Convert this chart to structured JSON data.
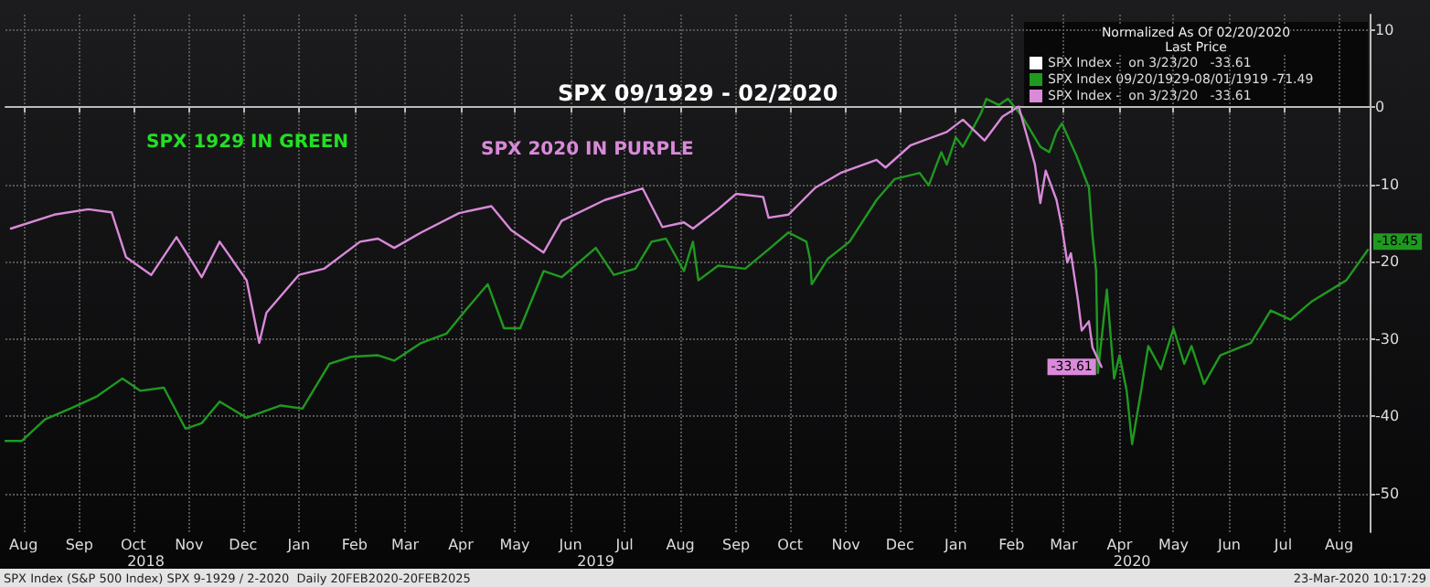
{
  "chart_data": {
    "type": "line",
    "title": "SPX 09/1929 - 02/2020",
    "legend_title": "Normalized As Of 02/20/2020\nLast Price",
    "annotations": [
      "SPX 1929 IN GREEN",
      "SPX 2020 IN PURPLE",
      "SPX Index (S&P 500 Index) SPX 9-1929 / 2-2020  Daily 20FEB2020-20FEB2025",
      "23-Mar-2020 10:17:29"
    ],
    "series": [
      {
        "name": "SPX Index -  on 3/23/20   -33.61",
        "color": "#ffffff"
      },
      {
        "name": "SPX Index 09/20/1929-08/01/1919 -71.49",
        "color": "#1f9a1f",
        "x": [
          "2018-08-05",
          "2018-08-14",
          "2018-08-27",
          "2018-09-10",
          "2018-09-25",
          "2018-10-09",
          "2018-10-19",
          "2018-11-01",
          "2018-11-13",
          "2018-11-22",
          "2018-12-02",
          "2018-12-17",
          "2019-01-05",
          "2019-01-17",
          "2019-02-01",
          "2019-02-13",
          "2019-02-28",
          "2019-03-09",
          "2019-03-24",
          "2019-04-07",
          "2019-04-19",
          "2019-04-30",
          "2019-05-09",
          "2019-05-18",
          "2019-05-31",
          "2019-06-10",
          "2019-06-29",
          "2019-07-09",
          "2019-07-21",
          "2019-07-30",
          "2019-08-07",
          "2019-08-17",
          "2019-08-22",
          "2019-08-25",
          "2019-09-05",
          "2019-09-20",
          "2019-10-04",
          "2019-10-14",
          "2019-10-24",
          "2019-10-26",
          "2019-10-27",
          "2019-11-05",
          "2019-11-17",
          "2019-12-02",
          "2019-12-12",
          "2019-12-26",
          "2019-12-31",
          "2020-01-07",
          "2020-01-10",
          "2020-01-15",
          "2020-01-19",
          "2020-01-29",
          "2020-02-01",
          "2020-02-08",
          "2020-02-13",
          "2020-02-21",
          "2020-03-02",
          "2020-03-07",
          "2020-03-11",
          "2020-03-14",
          "2020-03-22",
          "2020-03-29",
          "2020-03-31",
          "2020-04-02",
          "2020-04-03",
          "2020-04-08",
          "2020-04-12",
          "2020-04-15",
          "2020-04-19",
          "2020-04-22",
          "2020-04-27",
          "2020-05-01",
          "2020-05-08",
          "2020-05-15",
          "2020-05-21",
          "2020-05-25",
          "2020-06-01",
          "2020-06-10",
          "2020-06-27",
          "2020-07-08",
          "2020-07-19",
          "2020-07-31",
          "2020-08-19",
          "2020-08-31"
        ],
        "values": [
          -43.2,
          -43.2,
          -40.4,
          -39.0,
          -37.4,
          -35.1,
          -36.7,
          -36.3,
          -41.6,
          -40.9,
          -38.1,
          -40.2,
          -38.6,
          -39.0,
          -33.2,
          -32.3,
          -32.1,
          -32.8,
          -30.5,
          -29.3,
          -25.9,
          -22.9,
          -28.6,
          -28.6,
          -21.2,
          -22.0,
          -18.2,
          -21.7,
          -20.9,
          -17.4,
          -17.0,
          -21.2,
          -17.4,
          -22.4,
          -20.5,
          -20.9,
          -18.2,
          -16.2,
          -17.4,
          -19.6,
          -22.9,
          -19.6,
          -17.4,
          -12.0,
          -9.3,
          -8.5,
          -10.1,
          -5.8,
          -7.4,
          -3.9,
          -5.1,
          -0.8,
          1.1,
          0.3,
          1.1,
          -1.2,
          -5.1,
          -5.8,
          -3.2,
          -2.1,
          -6.2,
          -10.4,
          -16.6,
          -21.2,
          -34.4,
          -23.6,
          -35.1,
          -32.1,
          -36.7,
          -43.6,
          -36.7,
          -30.9,
          -33.9,
          -28.6,
          -33.2,
          -30.9,
          -35.8,
          -32.1,
          -30.5,
          -26.3,
          -27.5,
          -25.1,
          -22.4,
          -18.45
        ],
        "value_labels": [
          null,
          null,
          null,
          null,
          null,
          null,
          null,
          null,
          null,
          null,
          null,
          null,
          null,
          null,
          null,
          null,
          null,
          null,
          null,
          null,
          null,
          null,
          null,
          null,
          null,
          null,
          null,
          null,
          null,
          null,
          null,
          null,
          null,
          null,
          null,
          null,
          null,
          null,
          null,
          null,
          null,
          null,
          null,
          null,
          null,
          null,
          null,
          null,
          null,
          null,
          null,
          null,
          null,
          null,
          null,
          null,
          null,
          null,
          null,
          null,
          null,
          null,
          null,
          null,
          null,
          null,
          null,
          null,
          null,
          null,
          null,
          null,
          null,
          null,
          null,
          null,
          null,
          null,
          null,
          null,
          null,
          null,
          null,
          "-18.45"
        ]
      },
      {
        "name": "SPX Index -  on 3/23/20   -33.61",
        "color": "#d98ad9",
        "x": [
          "2018-08-08",
          "2018-09-01",
          "2018-09-20",
          "2018-10-03",
          "2018-10-11",
          "2018-10-25",
          "2018-11-08",
          "2018-11-22",
          "2018-12-02",
          "2018-12-17",
          "2018-12-24",
          "2018-12-28",
          "2019-01-15",
          "2019-01-29",
          "2019-02-18",
          "2019-02-28",
          "2019-03-09",
          "2019-03-24",
          "2019-04-14",
          "2019-05-02",
          "2019-05-13",
          "2019-05-31",
          "2019-06-10",
          "2019-07-04",
          "2019-07-25",
          "2019-08-05",
          "2019-08-17",
          "2019-08-22",
          "2019-09-05",
          "2019-09-15",
          "2019-09-30",
          "2019-10-03",
          "2019-10-14",
          "2019-10-29",
          "2019-11-12",
          "2019-12-02",
          "2019-12-07",
          "2019-12-21",
          "2020-01-10",
          "2020-01-19",
          "2020-01-31",
          "2020-02-10",
          "2020-02-19",
          "2020-02-28",
          "2020-03-02",
          "2020-03-05",
          "2020-03-11",
          "2020-03-14",
          "2020-03-17",
          "2020-03-19",
          "2020-03-23",
          "2020-03-25",
          "2020-03-29",
          "2020-03-31",
          "2020-04-05"
        ],
        "values": [
          -15.7,
          -13.9,
          -13.2,
          -13.6,
          -19.4,
          -21.7,
          -16.8,
          -22.0,
          -17.4,
          -22.4,
          -30.5,
          -26.6,
          -21.7,
          -20.9,
          -17.4,
          -17.0,
          -18.2,
          -16.2,
          -13.7,
          -12.8,
          -15.9,
          -18.8,
          -14.7,
          -12.0,
          -10.5,
          -15.5,
          -14.9,
          -15.7,
          -13.2,
          -11.2,
          -11.6,
          -14.3,
          -13.9,
          -10.4,
          -8.5,
          -6.8,
          -7.8,
          -4.9,
          -3.2,
          -1.6,
          -4.3,
          -1.2,
          0.1,
          -7.4,
          -12.4,
          -8.2,
          -12.0,
          -15.5,
          -20.1,
          -18.9,
          -25.1,
          -28.9,
          -27.7,
          -31.1,
          -33.61
        ],
        "value_labels": [
          null,
          null,
          null,
          null,
          null,
          null,
          null,
          null,
          null,
          null,
          null,
          null,
          null,
          null,
          null,
          null,
          null,
          null,
          null,
          null,
          null,
          null,
          null,
          null,
          null,
          null,
          null,
          null,
          null,
          null,
          null,
          null,
          null,
          null,
          null,
          null,
          null,
          null,
          null,
          null,
          null,
          null,
          null,
          null,
          null,
          null,
          null,
          null,
          null,
          null,
          null,
          null,
          null,
          null,
          "-33.61"
        ]
      }
    ],
    "xlim": [
      "2018-08-05",
      "2020-09-01"
    ],
    "xticks": [
      {
        "value": "2018-08-15",
        "label": "Aug"
      },
      {
        "value": "2018-09-15",
        "label": "Sep"
      },
      {
        "value": "2018-10-15",
        "label": "Oct"
      },
      {
        "value": "2018-11-15",
        "label": "Nov"
      },
      {
        "value": "2018-12-15",
        "label": "Dec"
      },
      {
        "value": "2019-01-15",
        "label": "Jan"
      },
      {
        "value": "2019-02-15",
        "label": "Feb"
      },
      {
        "value": "2019-03-15",
        "label": "Mar"
      },
      {
        "value": "2019-04-15",
        "label": "Apr"
      },
      {
        "value": "2019-05-15",
        "label": "May"
      },
      {
        "value": "2019-06-15",
        "label": "Jun"
      },
      {
        "value": "2019-07-15",
        "label": "Jul"
      },
      {
        "value": "2019-08-15",
        "label": "Aug"
      },
      {
        "value": "2019-09-15",
        "label": "Sep"
      },
      {
        "value": "2019-10-15",
        "label": "Oct"
      },
      {
        "value": "2019-11-15",
        "label": "Nov"
      },
      {
        "value": "2019-12-15",
        "label": "Dec"
      },
      {
        "value": "2020-01-15",
        "label": "Jan"
      },
      {
        "value": "2020-02-15",
        "label": "Feb"
      },
      {
        "value": "2020-03-15",
        "label": "Mar"
      },
      {
        "value": "2020-04-15",
        "label": "Apr"
      },
      {
        "value": "2020-05-15",
        "label": "May"
      },
      {
        "value": "2020-06-15",
        "label": "Jun"
      },
      {
        "value": "2020-07-15",
        "label": "Jul"
      },
      {
        "value": "2020-08-15",
        "label": "Aug"
      }
    ],
    "x2lim": [
      "2018-08-05",
      "2020-09-01"
    ],
    "x2ticks": [
      {
        "value": "2018-10-22",
        "label": "2018"
      },
      {
        "value": "2019-06-29",
        "label": "2019"
      },
      {
        "value": "2020-04-22",
        "label": "2020"
      }
    ],
    "ylim": [
      -55,
      12
    ],
    "yticks": [
      10,
      0,
      -10,
      -20,
      -30,
      -40,
      -50
    ],
    "grid": true,
    "legend": "top right",
    "line_style": "solid"
  }
}
